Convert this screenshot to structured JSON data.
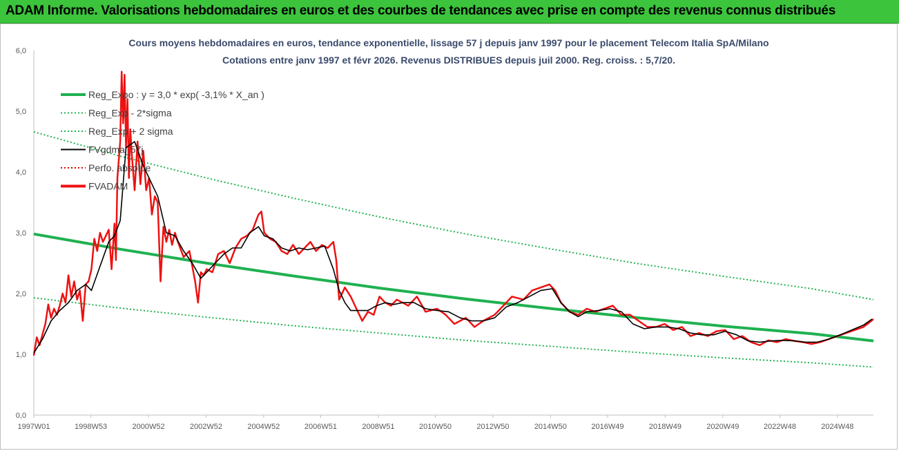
{
  "header": {
    "title": "ADAM Informe. Valorisations hebdomadaires en euros et des courbes de tendances avec prise en compte des revenus connus distribués"
  },
  "colors": {
    "header_bg": "#3cc43c",
    "reg_expo": "#1fb150",
    "reg_sigma": "#1fb150",
    "fvgdma": "#000000",
    "perfo": "#e00000",
    "fvadam": "#ee1111"
  },
  "chart_data": {
    "type": "line",
    "title_line1": "Cours moyens hebdomadaires en euros, tendance exponentielle, lissage 57 j depuis janv 1997  pour le placement Telecom Italia SpA/Milano",
    "title_line2": "Cotations entre janv 1997 et févr 2026. Revenus DISTRIBUES  depuis juil 2000. Reg. croiss. : 5,7/20.",
    "xlabel": "",
    "ylabel": "",
    "ylim": [
      0,
      6
    ],
    "xlim": [
      1997.0,
      2026.15
    ],
    "y_ticks": [
      "0,0",
      "1,0",
      "2,0",
      "3,0",
      "4,0",
      "5,0",
      "6,0"
    ],
    "x_ticks": [
      {
        "label": "1997W01",
        "x": 1997.0
      },
      {
        "label": "1998W53",
        "x": 1998.98
      },
      {
        "label": "2000W52",
        "x": 2000.98
      },
      {
        "label": "2002W52",
        "x": 2002.98
      },
      {
        "label": "2004W52",
        "x": 2004.98
      },
      {
        "label": "2006W51",
        "x": 2006.96
      },
      {
        "label": "2008W51",
        "x": 2008.96
      },
      {
        "label": "2010W50",
        "x": 2010.94
      },
      {
        "label": "2012W50",
        "x": 2012.94
      },
      {
        "label": "2014W50",
        "x": 2014.94
      },
      {
        "label": "2016W49",
        "x": 2016.92
      },
      {
        "label": "2018W49",
        "x": 2018.92
      },
      {
        "label": "2020W49",
        "x": 2020.92
      },
      {
        "label": "2022W48",
        "x": 2022.9
      },
      {
        "label": "2024W48",
        "x": 2024.9
      }
    ],
    "grid": false,
    "legend_position": "top-left",
    "legend": [
      {
        "name": "Reg_Expo : y = 3,0 * exp( -3,1% *  X_an )",
        "style": "thick-solid",
        "color": "#1fb150"
      },
      {
        "name": "Reg_Exp - 2*sigma",
        "style": "dotted",
        "color": "#1fb150"
      },
      {
        "name": "Reg_Exp + 2 sigma",
        "style": "dotted",
        "color": "#1fb150"
      },
      {
        "name": "FVgdma_57j",
        "style": "solid",
        "color": "#000000"
      },
      {
        "name": "Perfo. absolue",
        "style": "dotted",
        "color": "#e00000"
      },
      {
        "name": "FVADAM",
        "style": "thick-solid",
        "color": "#ee1111"
      }
    ],
    "regression": {
      "a": 3.0,
      "rate": -0.031
    },
    "series": [
      {
        "name": "Reg_Expo : y = 3,0 * exp( -3,1% *  X_an )",
        "x": [
          1997.0,
          2000.0,
          2003.0,
          2006.0,
          2009.0,
          2012.0,
          2015.0,
          2018.0,
          2021.0,
          2024.0,
          2026.15
        ],
        "values": [
          2.98,
          2.73,
          2.5,
          2.29,
          2.09,
          1.91,
          1.75,
          1.6,
          1.46,
          1.34,
          1.22
        ]
      },
      {
        "name": "Reg_Exp - 2*sigma",
        "x": [
          1997.0,
          2000.0,
          2003.0,
          2006.0,
          2009.0,
          2012.0,
          2015.0,
          2018.0,
          2021.0,
          2024.0,
          2026.15
        ],
        "values": [
          1.93,
          1.76,
          1.61,
          1.47,
          1.35,
          1.23,
          1.13,
          1.03,
          0.94,
          0.86,
          0.79
        ]
      },
      {
        "name": "Reg_Exp + 2 sigma",
        "x": [
          1997.0,
          2000.0,
          2003.0,
          2006.0,
          2009.0,
          2012.0,
          2015.0,
          2018.0,
          2021.0,
          2024.0,
          2026.15
        ],
        "values": [
          4.66,
          4.26,
          3.9,
          3.57,
          3.26,
          2.98,
          2.73,
          2.49,
          2.28,
          2.08,
          1.9
        ]
      },
      {
        "name": "FVgdma_57j",
        "x": [
          1997.0,
          1997.3,
          1997.6,
          1997.9,
          1998.2,
          1998.5,
          1998.8,
          1999.0,
          1999.3,
          1999.6,
          1999.8,
          2000.0,
          2000.2,
          2000.5,
          2000.8,
          2001.0,
          2001.3,
          2001.6,
          2001.9,
          2002.2,
          2002.5,
          2002.8,
          2003.0,
          2003.3,
          2003.6,
          2003.9,
          2004.2,
          2004.5,
          2004.8,
          2005.0,
          2005.3,
          2005.6,
          2005.9,
          2006.2,
          2006.5,
          2006.8,
          2007.1,
          2007.4,
          2007.6,
          2007.8,
          2008.0,
          2008.3,
          2008.6,
          2008.9,
          2009.2,
          2009.5,
          2009.8,
          2010.2,
          2010.6,
          2011.0,
          2011.4,
          2011.8,
          2012.2,
          2012.6,
          2013.0,
          2013.4,
          2013.8,
          2014.2,
          2014.6,
          2015.0,
          2015.3,
          2015.6,
          2015.9,
          2016.2,
          2016.6,
          2017.0,
          2017.4,
          2017.8,
          2018.2,
          2018.6,
          2019.0,
          2019.4,
          2019.8,
          2020.2,
          2020.6,
          2021.0,
          2021.4,
          2021.8,
          2022.2,
          2022.6,
          2023.0,
          2023.4,
          2023.8,
          2024.2,
          2024.6,
          2025.0,
          2025.4,
          2025.8,
          2026.1
        ],
        "values": [
          1.02,
          1.25,
          1.55,
          1.72,
          1.85,
          2.05,
          2.15,
          2.05,
          2.45,
          2.85,
          2.95,
          3.2,
          4.4,
          4.5,
          4.1,
          3.9,
          3.6,
          3.0,
          2.95,
          2.7,
          2.5,
          2.25,
          2.35,
          2.5,
          2.65,
          2.75,
          2.75,
          3.0,
          3.1,
          2.95,
          2.9,
          2.75,
          2.7,
          2.75,
          2.72,
          2.75,
          2.78,
          2.4,
          2.05,
          1.85,
          1.72,
          1.72,
          1.72,
          1.8,
          1.85,
          1.82,
          1.85,
          1.85,
          1.75,
          1.72,
          1.7,
          1.6,
          1.55,
          1.55,
          1.6,
          1.78,
          1.85,
          1.95,
          2.05,
          2.08,
          1.85,
          1.7,
          1.62,
          1.7,
          1.72,
          1.75,
          1.7,
          1.5,
          1.42,
          1.45,
          1.45,
          1.42,
          1.35,
          1.32,
          1.32,
          1.38,
          1.32,
          1.22,
          1.2,
          1.22,
          1.23,
          1.22,
          1.2,
          1.2,
          1.25,
          1.32,
          1.4,
          1.48,
          1.58
        ]
      },
      {
        "name": "FVADAM",
        "x": [
          1997.0,
          1997.1,
          1997.2,
          1997.4,
          1997.5,
          1997.6,
          1997.7,
          1997.8,
          1997.9,
          1998.0,
          1998.1,
          1998.2,
          1998.3,
          1998.4,
          1998.5,
          1998.6,
          1998.7,
          1998.8,
          1998.9,
          1999.0,
          1999.1,
          1999.2,
          1999.3,
          1999.4,
          1999.5,
          1999.6,
          1999.7,
          1999.8,
          1999.85,
          1999.9,
          2000.0,
          2000.05,
          2000.1,
          2000.15,
          2000.2,
          2000.25,
          2000.3,
          2000.35,
          2000.4,
          2000.5,
          2000.6,
          2000.7,
          2000.8,
          2000.9,
          2001.0,
          2001.1,
          2001.2,
          2001.3,
          2001.4,
          2001.5,
          2001.6,
          2001.7,
          2001.8,
          2001.9,
          2002.0,
          2002.2,
          2002.4,
          2002.6,
          2002.7,
          2002.8,
          2002.9,
          2003.0,
          2003.2,
          2003.4,
          2003.6,
          2003.8,
          2004.0,
          2004.2,
          2004.4,
          2004.6,
          2004.8,
          2004.9,
          2005.0,
          2005.2,
          2005.4,
          2005.6,
          2005.8,
          2006.0,
          2006.2,
          2006.4,
          2006.6,
          2006.8,
          2007.0,
          2007.2,
          2007.4,
          2007.5,
          2007.6,
          2007.8,
          2008.0,
          2008.2,
          2008.4,
          2008.6,
          2008.8,
          2009.0,
          2009.2,
          2009.4,
          2009.6,
          2009.8,
          2010.0,
          2010.3,
          2010.6,
          2011.0,
          2011.3,
          2011.6,
          2012.0,
          2012.3,
          2012.6,
          2013.0,
          2013.3,
          2013.6,
          2014.0,
          2014.3,
          2014.6,
          2014.9,
          2015.1,
          2015.3,
          2015.6,
          2015.9,
          2016.2,
          2016.5,
          2016.8,
          2017.1,
          2017.4,
          2017.7,
          2018.0,
          2018.3,
          2018.6,
          2018.9,
          2019.2,
          2019.5,
          2019.8,
          2020.1,
          2020.4,
          2020.7,
          2021.0,
          2021.3,
          2021.6,
          2021.9,
          2022.2,
          2022.5,
          2022.8,
          2023.1,
          2023.4,
          2023.7,
          2024.0,
          2024.3,
          2024.6,
          2024.9,
          2025.2,
          2025.5,
          2025.8,
          2026.0,
          2026.15
        ],
        "values": [
          0.98,
          1.28,
          1.15,
          1.5,
          1.82,
          1.6,
          1.75,
          1.65,
          1.8,
          2.0,
          1.85,
          2.3,
          1.95,
          2.2,
          1.9,
          2.05,
          1.55,
          2.15,
          2.2,
          2.4,
          2.9,
          2.7,
          3.0,
          2.85,
          2.95,
          3.05,
          2.4,
          3.15,
          2.55,
          3.9,
          4.5,
          5.65,
          4.8,
          5.6,
          4.4,
          5.2,
          3.9,
          4.7,
          4.3,
          3.7,
          4.5,
          3.8,
          4.35,
          3.7,
          3.9,
          3.3,
          3.6,
          3.5,
          2.2,
          3.1,
          2.85,
          3.05,
          2.8,
          3.0,
          2.85,
          2.6,
          2.7,
          2.2,
          1.85,
          2.35,
          2.3,
          2.4,
          2.35,
          2.65,
          2.7,
          2.5,
          2.75,
          2.9,
          2.95,
          3.05,
          3.3,
          3.35,
          3.0,
          2.9,
          2.85,
          2.7,
          2.65,
          2.8,
          2.65,
          2.75,
          2.85,
          2.7,
          2.8,
          2.75,
          2.85,
          2.55,
          1.9,
          2.1,
          1.95,
          1.75,
          1.55,
          1.7,
          1.65,
          1.95,
          1.85,
          1.8,
          1.9,
          1.85,
          1.8,
          1.95,
          1.7,
          1.75,
          1.65,
          1.5,
          1.6,
          1.45,
          1.55,
          1.65,
          1.8,
          1.95,
          1.9,
          2.05,
          2.1,
          2.15,
          2.05,
          1.85,
          1.7,
          1.65,
          1.75,
          1.7,
          1.75,
          1.8,
          1.65,
          1.65,
          1.55,
          1.45,
          1.45,
          1.5,
          1.4,
          1.45,
          1.3,
          1.35,
          1.3,
          1.38,
          1.4,
          1.25,
          1.3,
          1.2,
          1.15,
          1.23,
          1.2,
          1.25,
          1.22,
          1.2,
          1.17,
          1.2,
          1.25,
          1.3,
          1.35,
          1.4,
          1.45,
          1.52,
          1.58
        ]
      }
    ]
  }
}
